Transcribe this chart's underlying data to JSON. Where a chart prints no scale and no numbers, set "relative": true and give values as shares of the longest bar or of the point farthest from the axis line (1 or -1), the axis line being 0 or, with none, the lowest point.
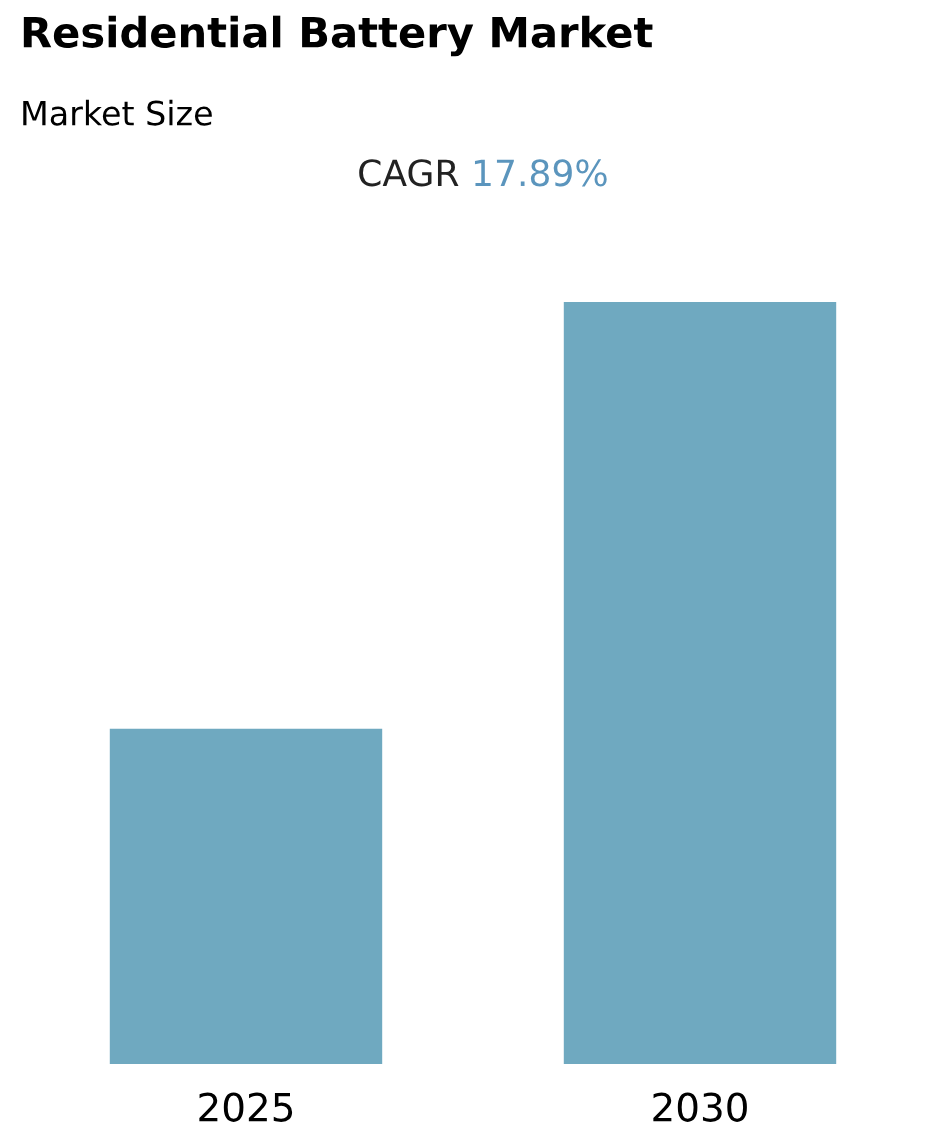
{
  "chart_data": {
    "type": "bar",
    "title": "Residential Battery Market",
    "subtitle": "Market Size",
    "annotations": [
      "CAGR 17.89%"
    ],
    "categories": [
      "2025",
      "2030"
    ],
    "values": [
      0.44,
      1
    ],
    "color": "#6fa9c0",
    "relative": true
  }
}
